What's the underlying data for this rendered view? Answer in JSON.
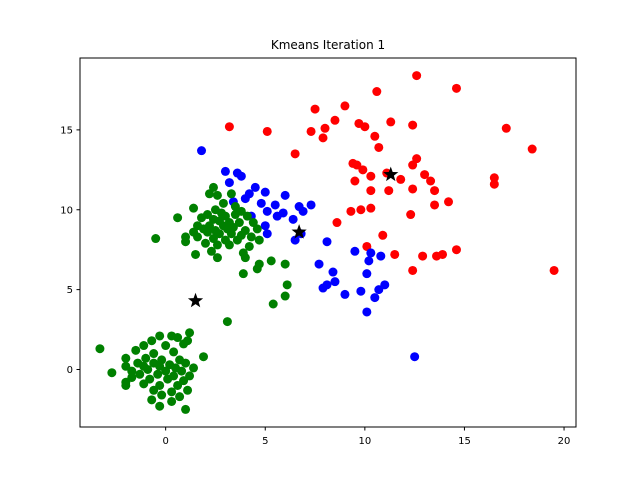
{
  "chart_data": {
    "type": "scatter",
    "title": "Kmeans Iteration 1",
    "xlabel": "",
    "ylabel": "",
    "xlim": [
      -4.3,
      20.6
    ],
    "ylim": [
      -3.6,
      19.5
    ],
    "xticks": [
      0,
      5,
      10,
      15,
      20
    ],
    "yticks": [
      0,
      5,
      10,
      15
    ],
    "grid": false,
    "legend": "none",
    "series": [
      {
        "color": "#ff0000",
        "points": [
          [
            12.6,
            18.4
          ],
          [
            14.6,
            17.6
          ],
          [
            10.6,
            17.4
          ],
          [
            9.0,
            16.5
          ],
          [
            7.5,
            16.3
          ],
          [
            8.5,
            15.6
          ],
          [
            12.4,
            15.3
          ],
          [
            11.3,
            15.5
          ],
          [
            9.7,
            15.4
          ],
          [
            10.0,
            15.2
          ],
          [
            17.1,
            15.1
          ],
          [
            8.0,
            15.1
          ],
          [
            7.3,
            14.9
          ],
          [
            5.1,
            14.9
          ],
          [
            10.5,
            14.6
          ],
          [
            7.9,
            14.5
          ],
          [
            10.7,
            13.9
          ],
          [
            18.4,
            13.8
          ],
          [
            6.5,
            13.5
          ],
          [
            12.6,
            13.2
          ],
          [
            9.4,
            12.9
          ],
          [
            9.6,
            12.8
          ],
          [
            12.4,
            12.8
          ],
          [
            11.1,
            12.3
          ],
          [
            9.9,
            12.5
          ],
          [
            13.0,
            12.2
          ],
          [
            10.3,
            12.1
          ],
          [
            16.5,
            12.0
          ],
          [
            11.8,
            11.9
          ],
          [
            9.5,
            11.8
          ],
          [
            13.3,
            11.8
          ],
          [
            16.5,
            11.6
          ],
          [
            10.3,
            11.2
          ],
          [
            11.2,
            11.2
          ],
          [
            12.4,
            11.3
          ],
          [
            13.5,
            11.2
          ],
          [
            14.2,
            10.5
          ],
          [
            13.5,
            10.3
          ],
          [
            10.3,
            10.1
          ],
          [
            9.8,
            10.0
          ],
          [
            12.3,
            9.7
          ],
          [
            9.3,
            9.9
          ],
          [
            8.6,
            9.2
          ],
          [
            10.9,
            8.4
          ],
          [
            10.1,
            7.7
          ],
          [
            14.6,
            7.5
          ],
          [
            11.5,
            7.2
          ],
          [
            12.9,
            7.1
          ],
          [
            13.6,
            7.1
          ],
          [
            13.9,
            7.2
          ],
          [
            12.4,
            6.2
          ],
          [
            19.5,
            6.2
          ],
          [
            3.2,
            15.2
          ]
        ]
      },
      {
        "color": "#0000ff",
        "points": [
          [
            1.8,
            13.7
          ],
          [
            3.0,
            12.4
          ],
          [
            3.8,
            12.1
          ],
          [
            3.6,
            12.3
          ],
          [
            4.5,
            11.4
          ],
          [
            3.2,
            11.7
          ],
          [
            4.2,
            11.0
          ],
          [
            5.0,
            11.1
          ],
          [
            6.0,
            10.9
          ],
          [
            4.0,
            10.7
          ],
          [
            3.4,
            10.5
          ],
          [
            4.8,
            10.4
          ],
          [
            5.5,
            10.3
          ],
          [
            6.7,
            10.2
          ],
          [
            7.3,
            10.3
          ],
          [
            6.9,
            9.9
          ],
          [
            5.1,
            9.9
          ],
          [
            5.9,
            9.8
          ],
          [
            4.3,
            9.6
          ],
          [
            5.6,
            9.6
          ],
          [
            6.4,
            9.4
          ],
          [
            5.0,
            9.0
          ],
          [
            5.1,
            8.5
          ],
          [
            6.8,
            8.5
          ],
          [
            6.5,
            8.1
          ],
          [
            8.1,
            8.0
          ],
          [
            9.5,
            7.4
          ],
          [
            10.3,
            7.3
          ],
          [
            10.8,
            7.1
          ],
          [
            10.2,
            6.8
          ],
          [
            7.7,
            6.6
          ],
          [
            8.4,
            6.1
          ],
          [
            10.1,
            6.0
          ],
          [
            8.5,
            5.5
          ],
          [
            8.1,
            5.3
          ],
          [
            7.9,
            5.1
          ],
          [
            11.0,
            5.3
          ],
          [
            10.7,
            5.0
          ],
          [
            9.0,
            4.7
          ],
          [
            9.8,
            4.9
          ],
          [
            10.5,
            4.5
          ],
          [
            10.1,
            3.6
          ],
          [
            12.5,
            0.8
          ]
        ]
      },
      {
        "color": "#008000",
        "points": [
          [
            2.4,
            11.4
          ],
          [
            2.2,
            11.0
          ],
          [
            2.6,
            10.9
          ],
          [
            3.3,
            11.0
          ],
          [
            2.9,
            10.4
          ],
          [
            3.5,
            10.2
          ],
          [
            1.4,
            10.1
          ],
          [
            2.5,
            10.0
          ],
          [
            3.8,
            9.9
          ],
          [
            2.1,
            9.7
          ],
          [
            2.8,
            9.8
          ],
          [
            3.0,
            9.6
          ],
          [
            3.5,
            9.7
          ],
          [
            4.1,
            9.6
          ],
          [
            1.8,
            9.5
          ],
          [
            2.4,
            9.4
          ],
          [
            0.6,
            9.5
          ],
          [
            2.7,
            9.3
          ],
          [
            3.2,
            9.2
          ],
          [
            3.7,
            9.2
          ],
          [
            4.4,
            9.2
          ],
          [
            1.6,
            9.0
          ],
          [
            2.2,
            9.0
          ],
          [
            2.9,
            9.0
          ],
          [
            3.4,
            8.9
          ],
          [
            1.9,
            8.8
          ],
          [
            2.5,
            8.7
          ],
          [
            3.1,
            8.8
          ],
          [
            4.0,
            8.7
          ],
          [
            4.6,
            8.8
          ],
          [
            1.4,
            8.6
          ],
          [
            2.1,
            8.6
          ],
          [
            2.7,
            8.5
          ],
          [
            3.3,
            8.5
          ],
          [
            3.8,
            8.4
          ],
          [
            4.3,
            8.3
          ],
          [
            1.0,
            8.3
          ],
          [
            1.6,
            8.3
          ],
          [
            2.4,
            8.2
          ],
          [
            3.0,
            8.1
          ],
          [
            3.6,
            8.1
          ],
          [
            4.7,
            8.1
          ],
          [
            -0.5,
            8.2
          ],
          [
            1.0,
            8.0
          ],
          [
            2.0,
            7.9
          ],
          [
            2.6,
            7.8
          ],
          [
            3.2,
            7.8
          ],
          [
            4.2,
            7.7
          ],
          [
            2.3,
            7.4
          ],
          [
            3.9,
            7.3
          ],
          [
            1.5,
            7.2
          ],
          [
            2.6,
            7.0
          ],
          [
            4.0,
            7.0
          ],
          [
            5.3,
            6.8
          ],
          [
            4.7,
            6.6
          ],
          [
            6.0,
            6.6
          ],
          [
            3.9,
            6.0
          ],
          [
            4.6,
            6.3
          ],
          [
            6.1,
            5.3
          ],
          [
            6.0,
            4.6
          ],
          [
            5.4,
            4.1
          ],
          [
            3.1,
            3.0
          ],
          [
            -0.3,
            2.1
          ],
          [
            0.3,
            2.1
          ],
          [
            0.6,
            2.0
          ],
          [
            1.2,
            2.3
          ],
          [
            -0.7,
            1.8
          ],
          [
            1.1,
            1.8
          ],
          [
            -1.1,
            1.5
          ],
          [
            0.0,
            1.5
          ],
          [
            0.9,
            1.6
          ],
          [
            -3.3,
            1.3
          ],
          [
            -1.5,
            1.2
          ],
          [
            -0.6,
            1.0
          ],
          [
            0.4,
            1.1
          ],
          [
            1.9,
            0.8
          ],
          [
            -2.0,
            0.7
          ],
          [
            -1.0,
            0.7
          ],
          [
            -0.2,
            0.6
          ],
          [
            0.7,
            0.6
          ],
          [
            -1.4,
            0.4
          ],
          [
            -0.6,
            0.4
          ],
          [
            0.2,
            0.3
          ],
          [
            1.0,
            0.4
          ],
          [
            -2.0,
            0.2
          ],
          [
            -1.1,
            0.2
          ],
          [
            -0.3,
            0.2
          ],
          [
            0.5,
            0.1
          ],
          [
            1.4,
            0.1
          ],
          [
            -1.7,
            -0.1
          ],
          [
            -0.9,
            0.0
          ],
          [
            0.0,
            -0.1
          ],
          [
            0.8,
            -0.1
          ],
          [
            -2.7,
            -0.2
          ],
          [
            -1.3,
            -0.3
          ],
          [
            -0.4,
            -0.3
          ],
          [
            0.4,
            -0.4
          ],
          [
            1.2,
            -0.4
          ],
          [
            -1.7,
            -0.5
          ],
          [
            -0.8,
            -0.6
          ],
          [
            0.1,
            -0.6
          ],
          [
            0.9,
            -0.7
          ],
          [
            -2.0,
            -0.8
          ],
          [
            -1.1,
            -0.9
          ],
          [
            -0.3,
            -1.0
          ],
          [
            0.6,
            -1.0
          ],
          [
            -0.6,
            -1.3
          ],
          [
            0.3,
            -1.4
          ],
          [
            1.1,
            -1.3
          ],
          [
            -0.2,
            -1.6
          ],
          [
            0.7,
            -1.7
          ],
          [
            -0.7,
            -1.9
          ],
          [
            0.3,
            -2.0
          ],
          [
            -0.3,
            -2.3
          ],
          [
            1.0,
            -2.5
          ],
          [
            -2.0,
            -1.0
          ]
        ]
      }
    ],
    "centroids": {
      "color": "#000000",
      "marker": "star",
      "points": [
        [
          11.3,
          12.2
        ],
        [
          6.7,
          8.6
        ],
        [
          1.5,
          4.3
        ]
      ]
    }
  }
}
